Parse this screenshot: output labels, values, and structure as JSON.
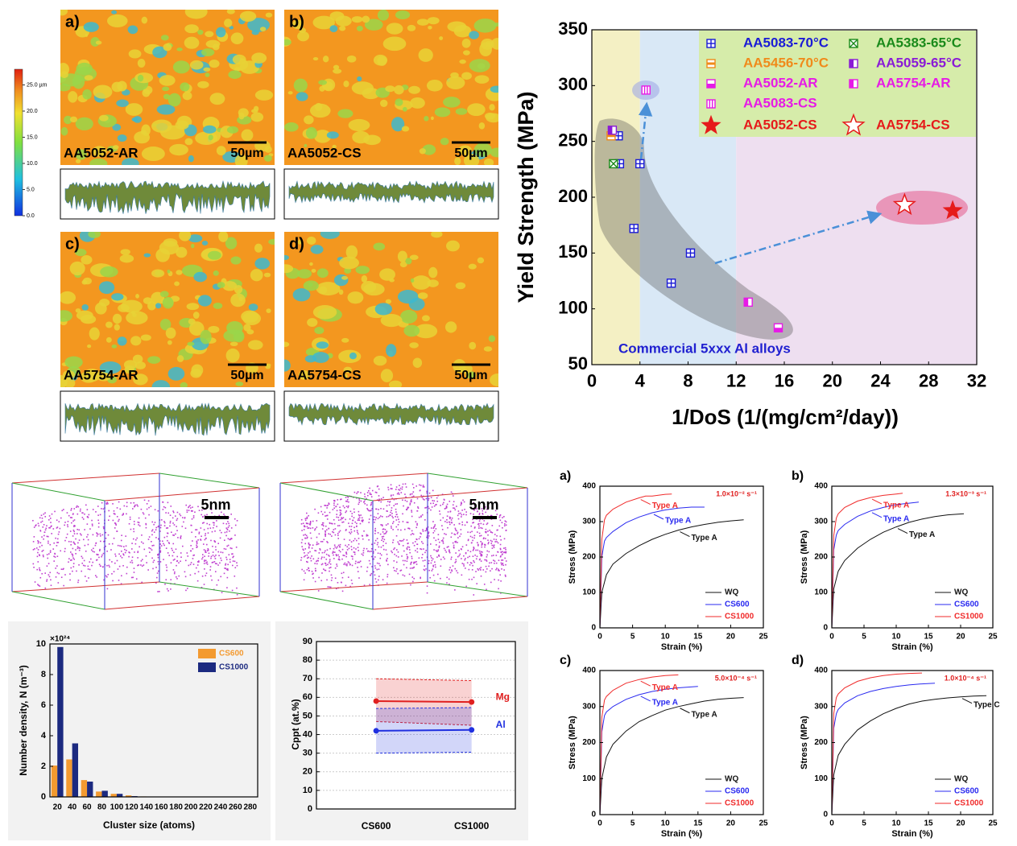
{
  "micrographs": {
    "colorbar": {
      "lim": [
        0,
        28
      ],
      "ticks": [
        {
          "value": 25,
          "label": "25.0 µm"
        },
        {
          "value": 20,
          "label": "20.0"
        },
        {
          "value": 15,
          "label": "15.0"
        },
        {
          "value": 10,
          "label": "10.0"
        },
        {
          "value": 5,
          "label": "5.0"
        },
        {
          "value": 0,
          "label": "0.0"
        }
      ]
    },
    "panels": [
      {
        "label": "a)",
        "name": "AA5052-AR",
        "scale": "50µm"
      },
      {
        "label": "b)",
        "name": "AA5052-CS",
        "scale": "50µm"
      },
      {
        "label": "c)",
        "name": "AA5754-AR",
        "scale": "50µm"
      },
      {
        "label": "d)",
        "name": "AA5754-CS",
        "scale": "50µm"
      }
    ]
  },
  "atom_maps": [
    {
      "scale": "5nm"
    },
    {
      "scale": "5nm"
    }
  ],
  "chart_data": [
    {
      "type": "scatter",
      "ylabel": "Yield Strength (MPa)",
      "xlabel": "1/DoS (1/(mg/cm²/day))",
      "annotation": "Commercial 5xxx Al alloys",
      "xlim": [
        0,
        32
      ],
      "xticks": [
        0,
        4,
        8,
        12,
        16,
        20,
        24,
        28,
        32
      ],
      "ylim": [
        50,
        350
      ],
      "yticks": [
        50,
        100,
        150,
        200,
        250,
        300,
        350
      ],
      "regions": [
        {
          "x": [
            0,
            4
          ],
          "color": "#f4f0c4"
        },
        {
          "x": [
            4,
            12
          ],
          "color": "#d9e8f6"
        },
        {
          "x": [
            12,
            32
          ],
          "color": "#eedff0"
        }
      ],
      "series": [
        {
          "name": "AA5083-70°C",
          "color": "#1a1ad6",
          "marker": "square-plus",
          "x": [
            2.3,
            2.2,
            4,
            3.5,
            8.2,
            6.6
          ],
          "values": [
            230,
            255,
            230,
            172,
            150,
            123
          ]
        },
        {
          "name": "AA5383-65°C",
          "color": "#1a8a1a",
          "marker": "square-x",
          "x": [
            1.8
          ],
          "values": [
            230
          ]
        },
        {
          "name": "AA5456-70°C",
          "color": "#f08a1a",
          "marker": "half-mid",
          "x": [
            1.6
          ],
          "values": [
            255
          ]
        },
        {
          "name": "AA5059-65°C",
          "color": "#8a1ad6",
          "marker": "half-left",
          "x": [
            1.7
          ],
          "values": [
            260
          ]
        },
        {
          "name": "AA5052-AR",
          "color": "#e61ae6",
          "marker": "half-bottom",
          "x": [
            15.5
          ],
          "values": [
            83
          ]
        },
        {
          "name": "AA5754-AR",
          "color": "#e61ae6",
          "marker": "half-left",
          "x": [
            13
          ],
          "values": [
            106
          ]
        },
        {
          "name": "AA5083-CS",
          "color": "#e61ae6",
          "marker": "square-bars",
          "x": [
            4.5
          ],
          "values": [
            296
          ]
        },
        {
          "name": "AA5052-CS",
          "color": "#e61a1a",
          "marker": "star",
          "x": [
            30
          ],
          "values": [
            188
          ]
        },
        {
          "name": "AA5754-CS",
          "color": "#e61a1a",
          "marker": "star-open",
          "x": [
            26
          ],
          "values": [
            193
          ]
        }
      ]
    },
    {
      "type": "bar",
      "ylabel": "Number density, N (m⁻³)",
      "xlabel": "Cluster size (atoms)",
      "multiplier": "×10²⁴",
      "categories": [
        "20",
        "40",
        "60",
        "80",
        "100",
        "120",
        "140",
        "160",
        "180",
        "200",
        "220",
        "240",
        "260",
        "280"
      ],
      "ylim": [
        0,
        10
      ],
      "yticks": [
        0,
        2,
        4,
        6,
        8,
        10
      ],
      "series": [
        {
          "name": "CS600",
          "color": "#f39a30",
          "values": [
            2.05,
            2.45,
            1.1,
            0.35,
            0.2,
            0.1,
            0.03,
            0,
            0,
            0.02,
            0,
            0,
            0,
            0
          ]
        },
        {
          "name": "CS1000",
          "color": "#1c2a80",
          "values": [
            9.8,
            3.5,
            1.0,
            0.4,
            0.2,
            0.05,
            0.02,
            0,
            0,
            0,
            0,
            0,
            0,
            0
          ]
        }
      ]
    },
    {
      "type": "band",
      "ylabel": "Cppt (at.%)",
      "categories": [
        "CS600",
        "CS1000"
      ],
      "ylim": [
        0,
        90
      ],
      "yticks": [
        0,
        10,
        20,
        30,
        40,
        50,
        60,
        70,
        80,
        90
      ],
      "grid": true,
      "series": [
        {
          "name": "Mg",
          "color": "#e02020",
          "values": [
            58,
            57.5
          ],
          "lower": [
            47,
            45
          ],
          "upper": [
            70,
            69
          ]
        },
        {
          "name": "Al",
          "color": "#2030e0",
          "values": [
            42,
            42.5
          ],
          "lower": [
            30,
            30.5
          ],
          "upper": [
            54,
            54.5
          ]
        }
      ]
    },
    {
      "type": "line",
      "label": "a)",
      "rate": "1.0×10⁻² s⁻¹",
      "annotations": [
        "Type A",
        "Type A",
        "Type A"
      ],
      "xlabel": "Strain (%)",
      "ylabel": "Stress (MPa)",
      "xlim": [
        0,
        25
      ],
      "xticks": [
        0,
        5,
        10,
        15,
        20,
        25
      ],
      "ylim": [
        0,
        400
      ],
      "yticks": [
        0,
        100,
        200,
        300,
        400
      ],
      "series": [
        {
          "name": "WQ",
          "color": "#111111",
          "x": [
            0,
            0.3,
            1,
            2,
            4,
            6,
            8,
            10,
            12,
            14,
            16,
            18,
            20,
            22
          ],
          "values": [
            0,
            100,
            150,
            180,
            210,
            232,
            250,
            264,
            276,
            285,
            292,
            298,
            302,
            305
          ]
        },
        {
          "name": "CS600",
          "color": "#2a2af0",
          "x": [
            0,
            0.3,
            0.7,
            1,
            2,
            4,
            6,
            8,
            10,
            12,
            14,
            16
          ],
          "values": [
            0,
            200,
            245,
            255,
            272,
            297,
            313,
            325,
            333,
            338,
            341,
            341
          ]
        },
        {
          "name": "CS1000",
          "color": "#f02a2a",
          "x": [
            0,
            0.3,
            0.7,
            1,
            2,
            4,
            6,
            7,
            8,
            10,
            11
          ],
          "values": [
            0,
            250,
            305,
            318,
            335,
            355,
            367,
            372,
            372,
            377,
            378
          ]
        }
      ]
    },
    {
      "type": "line",
      "label": "b)",
      "rate": "1.3×10⁻³ s⁻¹",
      "annotations": [
        "Type A",
        "Type A",
        "Type A"
      ],
      "xlabel": "Strain (%)",
      "ylabel": "Stress (MPa)",
      "xlim": [
        0,
        25
      ],
      "xticks": [
        0,
        5,
        10,
        15,
        20,
        25
      ],
      "ylim": [
        0,
        400
      ],
      "yticks": [
        0,
        100,
        200,
        300,
        400
      ],
      "series": [
        {
          "name": "WQ",
          "color": "#111111",
          "x": [
            0,
            0.3,
            1,
            2,
            4,
            6,
            8,
            10,
            12,
            14,
            16,
            18,
            20.5
          ],
          "values": [
            0,
            110,
            160,
            190,
            225,
            250,
            270,
            285,
            298,
            307,
            314,
            319,
            322
          ]
        },
        {
          "name": "CS600",
          "color": "#2a2af0",
          "x": [
            0,
            0.3,
            0.7,
            1,
            2,
            4,
            6,
            8,
            10,
            12,
            13.5
          ],
          "values": [
            0,
            220,
            262,
            275,
            292,
            315,
            330,
            340,
            348,
            352,
            355
          ]
        },
        {
          "name": "CS1000",
          "color": "#f02a2a",
          "x": [
            0,
            0.3,
            0.7,
            1,
            2,
            4,
            6,
            8,
            10,
            11
          ],
          "values": [
            0,
            260,
            310,
            322,
            340,
            358,
            368,
            374,
            378,
            380
          ]
        }
      ]
    },
    {
      "type": "line",
      "label": "c)",
      "rate": "5.0×10⁻⁴ s⁻¹",
      "annotations": [
        "Type A",
        "Type A",
        "Type A"
      ],
      "xlabel": "Strain (%)",
      "ylabel": "Stress (MPa)",
      "xlim": [
        0,
        25
      ],
      "xticks": [
        0,
        5,
        10,
        15,
        20,
        25
      ],
      "ylim": [
        0,
        400
      ],
      "yticks": [
        0,
        100,
        200,
        300,
        400
      ],
      "series": [
        {
          "name": "WQ",
          "color": "#111111",
          "x": [
            0,
            0.3,
            1,
            2,
            4,
            6,
            8,
            10,
            12,
            14,
            16,
            18,
            20,
            22
          ],
          "values": [
            0,
            100,
            160,
            195,
            232,
            258,
            275,
            290,
            300,
            308,
            315,
            320,
            323,
            325
          ]
        },
        {
          "name": "CS600",
          "color": "#2a2af0",
          "x": [
            0,
            0.3,
            0.7,
            1,
            2,
            4,
            6,
            8,
            10,
            12,
            15
          ],
          "values": [
            0,
            230,
            275,
            285,
            300,
            320,
            333,
            342,
            348,
            352,
            356
          ]
        },
        {
          "name": "CS1000",
          "color": "#f02a2a",
          "x": [
            0,
            0.3,
            0.7,
            1,
            2,
            4,
            6,
            8,
            10,
            12
          ],
          "values": [
            0,
            270,
            318,
            328,
            345,
            365,
            375,
            382,
            386,
            388
          ]
        }
      ]
    },
    {
      "type": "line",
      "label": "d)",
      "rate": "1.0×10⁻⁴ s⁻¹",
      "annotations": [
        "Type C"
      ],
      "xlabel": "Strain (%)",
      "ylabel": "Stress (MPa)",
      "xlim": [
        0,
        25
      ],
      "xticks": [
        0,
        5,
        10,
        15,
        20,
        25
      ],
      "ylim": [
        0,
        400
      ],
      "yticks": [
        0,
        100,
        200,
        300,
        400
      ],
      "series": [
        {
          "name": "WQ",
          "color": "#111111",
          "x": [
            0,
            0.3,
            1,
            2,
            4,
            6,
            8,
            10,
            12,
            14,
            16,
            18,
            20,
            22,
            24
          ],
          "values": [
            0,
            110,
            165,
            195,
            235,
            260,
            280,
            295,
            307,
            315,
            320,
            324,
            327,
            329,
            330
          ]
        },
        {
          "name": "CS600",
          "color": "#2a2af0",
          "x": [
            0,
            0.3,
            0.7,
            1,
            2,
            4,
            6,
            8,
            10,
            12,
            14,
            16
          ],
          "values": [
            0,
            240,
            280,
            292,
            310,
            330,
            342,
            350,
            356,
            360,
            363,
            365
          ]
        },
        {
          "name": "CS1000",
          "color": "#f02a2a",
          "x": [
            0,
            0.3,
            0.7,
            1,
            2,
            4,
            6,
            8,
            10,
            12,
            14
          ],
          "values": [
            0,
            280,
            325,
            335,
            352,
            370,
            380,
            386,
            390,
            392,
            393
          ]
        }
      ]
    }
  ]
}
